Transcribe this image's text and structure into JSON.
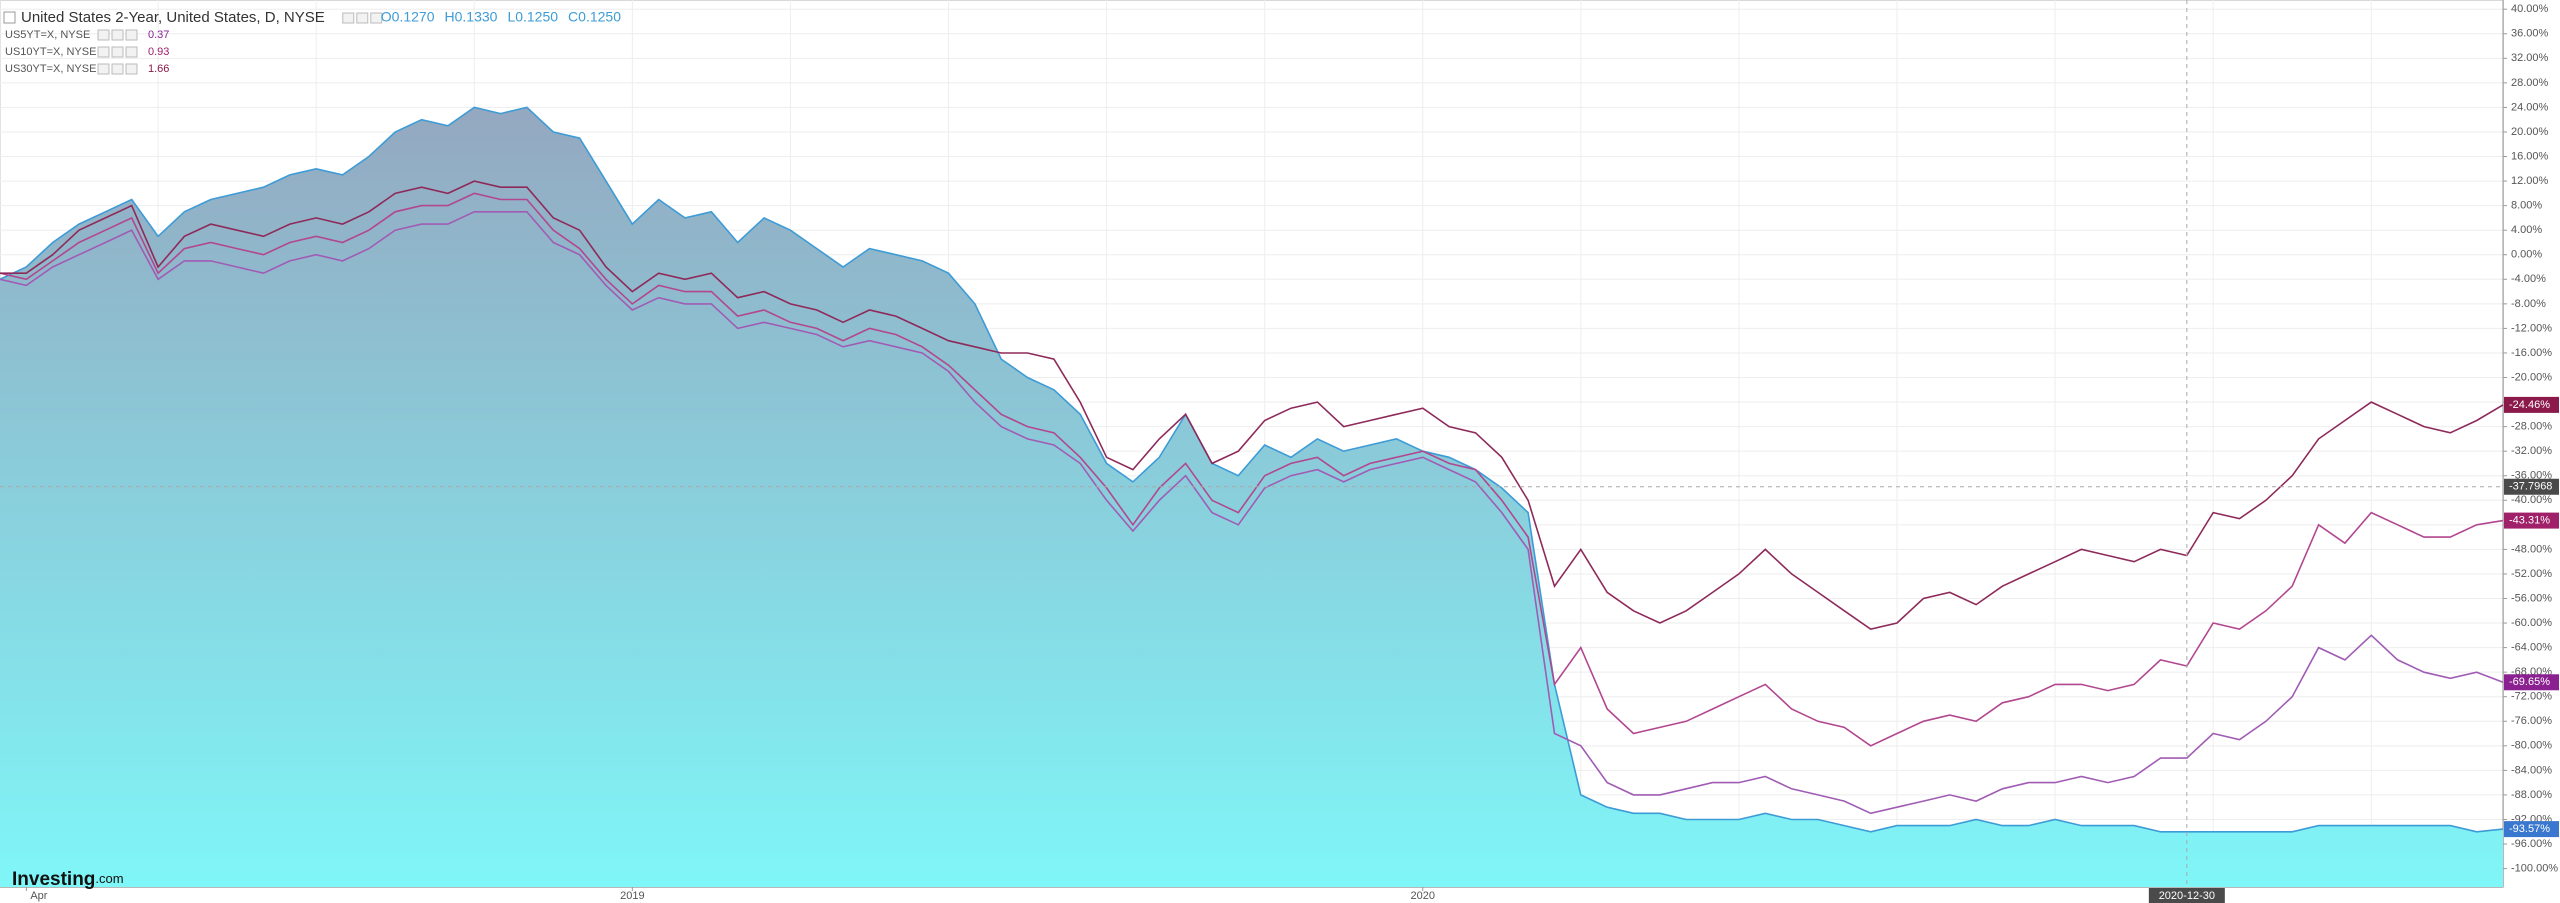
{
  "chart_data": {
    "type": "line",
    "title": "United States 2-Year, United States, D, NYSE",
    "ohlc": [
      "O0.1270",
      "H0.1330",
      "L0.1250",
      "C0.1250"
    ],
    "logo": [
      "Investing",
      ".com"
    ],
    "categories": [
      null,
      "Apr",
      null,
      null,
      null,
      null,
      null,
      null,
      null,
      null,
      null,
      null,
      null,
      null,
      null,
      null,
      null,
      null,
      null,
      null,
      null,
      null,
      null,
      null,
      "2019",
      null,
      null,
      null,
      null,
      null,
      null,
      null,
      null,
      null,
      null,
      null,
      null,
      null,
      null,
      null,
      null,
      null,
      null,
      null,
      null,
      null,
      null,
      null,
      null,
      null,
      null,
      null,
      null,
      null,
      "2020",
      null,
      null,
      null,
      null,
      null,
      null,
      null,
      null,
      null,
      null,
      null,
      null,
      null,
      null,
      null,
      null,
      null,
      null,
      null,
      null,
      null,
      null,
      null,
      null,
      null,
      null,
      null,
      null,
      null,
      null,
      null,
      null,
      null,
      null,
      null,
      null,
      null,
      null,
      null,
      null,
      null
    ],
    "crosshair": {
      "x_index": 83,
      "x_label": "2020-12-30",
      "y_value": -37.7968
    },
    "ylim": [
      -103,
      41.5
    ],
    "yticks": [
      {
        "value": 40,
        "label": "40.00%"
      },
      {
        "value": 36,
        "label": "36.00%"
      },
      {
        "value": 32,
        "label": "32.00%"
      },
      {
        "value": 28,
        "label": "28.00%"
      },
      {
        "value": 24,
        "label": "24.00%"
      },
      {
        "value": 20,
        "label": "20.00%"
      },
      {
        "value": 16,
        "label": "16.00%"
      },
      {
        "value": 12,
        "label": "12.00%"
      },
      {
        "value": 8,
        "label": "8.00%"
      },
      {
        "value": 4,
        "label": "4.00%"
      },
      {
        "value": 0,
        "label": "0.00%"
      },
      {
        "value": -4,
        "label": "-4.00%"
      },
      {
        "value": -8,
        "label": "-8.00%"
      },
      {
        "value": -12,
        "label": "-12.00%"
      },
      {
        "value": -16,
        "label": "-16.00%"
      },
      {
        "value": -20,
        "label": "-20.00%"
      },
      {
        "value": -24,
        "label": "-24.00%"
      },
      {
        "value": -28,
        "label": "-28.00%"
      },
      {
        "value": -32,
        "label": "-32.00%"
      },
      {
        "value": -36,
        "label": "-36.00%"
      },
      {
        "value": -40,
        "label": "-40.00%"
      },
      {
        "value": -44,
        "label": "-44.00%"
      },
      {
        "value": -48,
        "label": "-48.00%"
      },
      {
        "value": -52,
        "label": "-52.00%"
      },
      {
        "value": -56,
        "label": "-56.00%"
      },
      {
        "value": -60,
        "label": "-60.00%"
      },
      {
        "value": -64,
        "label": "-64.00%"
      },
      {
        "value": -68,
        "label": "-68.00%"
      },
      {
        "value": -72,
        "label": "-72.00%"
      },
      {
        "value": -76,
        "label": "-76.00%"
      },
      {
        "value": -80,
        "label": "-80.00%"
      },
      {
        "value": -84,
        "label": "-84.00%"
      },
      {
        "value": -88,
        "label": "-88.00%"
      },
      {
        "value": -92,
        "label": "-92.00%"
      },
      {
        "value": -96,
        "label": "-96.00%"
      },
      {
        "value": -100,
        "label": "-100.00%"
      }
    ],
    "grid": true,
    "series": [
      {
        "name": "United States 2-Year, United States, D, NYSE",
        "area": true,
        "color": "#3d9bd6",
        "tag_color": "#3a78d0",
        "values": [
          -4,
          -2,
          2,
          5,
          7,
          9,
          3,
          7,
          9,
          10,
          11,
          13,
          14,
          13,
          16,
          20,
          22,
          21,
          24,
          23,
          24,
          20,
          19,
          12,
          5,
          9,
          6,
          7,
          2,
          6,
          4,
          1,
          -2,
          1,
          0,
          -1,
          -3,
          -8,
          -17,
          -20,
          -22,
          -26,
          -34,
          -37,
          -33,
          -26,
          -34,
          -36,
          -31,
          -33,
          -30,
          -32,
          -31,
          -30,
          -32,
          -33,
          -35,
          -38,
          -42,
          -70,
          -88,
          -90,
          -91,
          -91,
          -92,
          -92,
          -92,
          -91,
          -92,
          -92,
          -93,
          -94,
          -93,
          -93,
          -93,
          -92,
          -93,
          -93,
          -92,
          -93,
          -93,
          -93,
          -94,
          -94,
          -94,
          -94,
          -94,
          -94,
          -93,
          -93,
          -93,
          -93,
          -93,
          -93,
          -94,
          -93.57
        ],
        "value_labels": [
          null,
          null,
          null,
          null,
          null,
          null,
          null,
          null,
          null,
          null,
          null,
          null,
          null,
          null,
          null,
          null,
          null,
          null,
          null,
          null,
          null,
          null,
          null,
          null,
          null,
          null,
          null,
          null,
          null,
          null,
          null,
          null,
          null,
          null,
          null,
          null,
          null,
          null,
          null,
          null,
          null,
          null,
          null,
          null,
          null,
          null,
          null,
          null,
          null,
          null,
          null,
          null,
          null,
          null,
          null,
          null,
          null,
          null,
          null,
          null,
          null,
          null,
          null,
          null,
          null,
          null,
          null,
          null,
          null,
          null,
          null,
          null,
          null,
          null,
          null,
          null,
          null,
          null,
          null,
          null,
          null,
          null,
          null,
          null,
          null,
          null,
          null,
          null,
          null,
          null,
          null,
          null,
          null,
          null,
          null,
          "-93.57%"
        ]
      },
      {
        "name": "US5YT=X, NYSE",
        "legend_value": 0.37,
        "color": "#a05cb4",
        "tag_color": "#8b2090",
        "values": [
          -4,
          -5,
          -2,
          0,
          2,
          4,
          -4,
          -1,
          -1,
          -2,
          -3,
          -1,
          0,
          -1,
          1,
          4,
          5,
          5,
          7,
          7,
          7,
          2,
          0,
          -5,
          -9,
          -7,
          -8,
          -8,
          -12,
          -11,
          -12,
          -13,
          -15,
          -14,
          -15,
          -16,
          -19,
          -24,
          -28,
          -30,
          -31,
          -34,
          -40,
          -45,
          -40,
          -36,
          -42,
          -44,
          -38,
          -36,
          -35,
          -37,
          -35,
          -34,
          -33,
          -35,
          -37,
          -42,
          -48,
          -78,
          -80,
          -86,
          -88,
          -88,
          -87,
          -86,
          -86,
          -85,
          -87,
          -88,
          -89,
          -91,
          -90,
          -89,
          -88,
          -89,
          -87,
          -86,
          -86,
          -85,
          -86,
          -85,
          -82,
          -82,
          -78,
          -79,
          -76,
          -72,
          -64,
          -66,
          -62,
          -66,
          -68,
          -69,
          -68,
          -69.65
        ],
        "value_labels": [
          null,
          null,
          null,
          null,
          null,
          null,
          null,
          null,
          null,
          null,
          null,
          null,
          null,
          null,
          null,
          null,
          null,
          null,
          null,
          null,
          null,
          null,
          null,
          null,
          null,
          null,
          null,
          null,
          null,
          null,
          null,
          null,
          null,
          null,
          null,
          null,
          null,
          null,
          null,
          null,
          null,
          null,
          null,
          null,
          null,
          null,
          null,
          null,
          null,
          null,
          null,
          null,
          null,
          null,
          null,
          null,
          null,
          null,
          null,
          null,
          null,
          null,
          null,
          null,
          null,
          null,
          null,
          null,
          null,
          null,
          null,
          null,
          null,
          null,
          null,
          null,
          null,
          null,
          null,
          null,
          null,
          null,
          null,
          null,
          null,
          null,
          null,
          null,
          null,
          null,
          null,
          null,
          null,
          null,
          null,
          "-69.65%"
        ]
      },
      {
        "name": "US10YT=X, NYSE",
        "legend_value": 0.93,
        "color": "#b2478f",
        "tag_color": "#a0206a",
        "values": [
          -3,
          -4,
          -1,
          2,
          4,
          6,
          -3,
          1,
          2,
          1,
          0,
          2,
          3,
          2,
          4,
          7,
          8,
          8,
          10,
          9,
          9,
          4,
          1,
          -4,
          -8,
          -5,
          -6,
          -6,
          -10,
          -9,
          -11,
          -12,
          -14,
          -12,
          -13,
          -15,
          -18,
          -22,
          -26,
          -28,
          -29,
          -33,
          -38,
          -44,
          -38,
          -34,
          -40,
          -42,
          -36,
          -34,
          -33,
          -36,
          -34,
          -33,
          -32,
          -34,
          -35,
          -40,
          -46,
          -70,
          -64,
          -74,
          -78,
          -77,
          -76,
          -74,
          -72,
          -70,
          -74,
          -76,
          -77,
          -80,
          -78,
          -76,
          -75,
          -76,
          -73,
          -72,
          -70,
          -70,
          -71,
          -70,
          -66,
          -67,
          -60,
          -61,
          -58,
          -54,
          -44,
          -47,
          -42,
          -44,
          -46,
          -46,
          -44,
          -43.31
        ],
        "value_labels": [
          null,
          null,
          null,
          null,
          null,
          null,
          null,
          null,
          null,
          null,
          null,
          null,
          null,
          null,
          null,
          null,
          null,
          null,
          null,
          null,
          null,
          null,
          null,
          null,
          null,
          null,
          null,
          null,
          null,
          null,
          null,
          null,
          null,
          null,
          null,
          null,
          null,
          null,
          null,
          null,
          null,
          null,
          null,
          null,
          null,
          null,
          null,
          null,
          null,
          null,
          null,
          null,
          null,
          null,
          null,
          null,
          null,
          null,
          null,
          null,
          null,
          null,
          null,
          null,
          null,
          null,
          null,
          null,
          null,
          null,
          null,
          null,
          null,
          null,
          null,
          null,
          null,
          null,
          null,
          null,
          null,
          null,
          null,
          null,
          null,
          null,
          null,
          null,
          null,
          null,
          null,
          null,
          null,
          null,
          null,
          "-43.31%"
        ]
      },
      {
        "name": "US30YT=X, NYSE",
        "legend_value": 1.66,
        "color": "#8e2a5a",
        "tag_color": "#8b1a4a",
        "values": [
          -3,
          -3,
          0,
          4,
          6,
          8,
          -2,
          3,
          5,
          4,
          3,
          5,
          6,
          5,
          7,
          10,
          11,
          10,
          12,
          11,
          11,
          6,
          4,
          -2,
          -6,
          -3,
          -4,
          -3,
          -7,
          -6,
          -8,
          -9,
          -11,
          -9,
          -10,
          -12,
          -14,
          -15,
          -16,
          -16,
          -17,
          -24,
          -33,
          -35,
          -30,
          -26,
          -34,
          -32,
          -27,
          -25,
          -24,
          -28,
          -27,
          -26,
          -25,
          -28,
          -29,
          -33,
          -40,
          -54,
          -48,
          -55,
          -58,
          -60,
          -58,
          -55,
          -52,
          -48,
          -52,
          -55,
          -58,
          -61,
          -60,
          -56,
          -55,
          -57,
          -54,
          -52,
          -50,
          -48,
          -49,
          -50,
          -48,
          -49,
          -42,
          -43,
          -40,
          -36,
          -30,
          -27,
          -24,
          -26,
          -28,
          -29,
          -27,
          -24.46
        ],
        "value_labels": [
          null,
          null,
          null,
          null,
          null,
          null,
          null,
          null,
          null,
          null,
          null,
          null,
          null,
          null,
          null,
          null,
          null,
          null,
          null,
          null,
          null,
          null,
          null,
          null,
          null,
          null,
          null,
          null,
          null,
          null,
          null,
          null,
          null,
          null,
          null,
          null,
          null,
          null,
          null,
          null,
          null,
          null,
          null,
          null,
          null,
          null,
          null,
          null,
          null,
          null,
          null,
          null,
          null,
          null,
          null,
          null,
          null,
          null,
          null,
          null,
          null,
          null,
          null,
          null,
          null,
          null,
          null,
          null,
          null,
          null,
          null,
          null,
          null,
          null,
          null,
          null,
          null,
          null,
          null,
          null,
          null,
          null,
          null,
          null,
          null,
          null,
          null,
          null,
          null,
          null,
          null,
          null,
          null,
          null,
          null,
          "-24.46%"
        ]
      }
    ]
  }
}
